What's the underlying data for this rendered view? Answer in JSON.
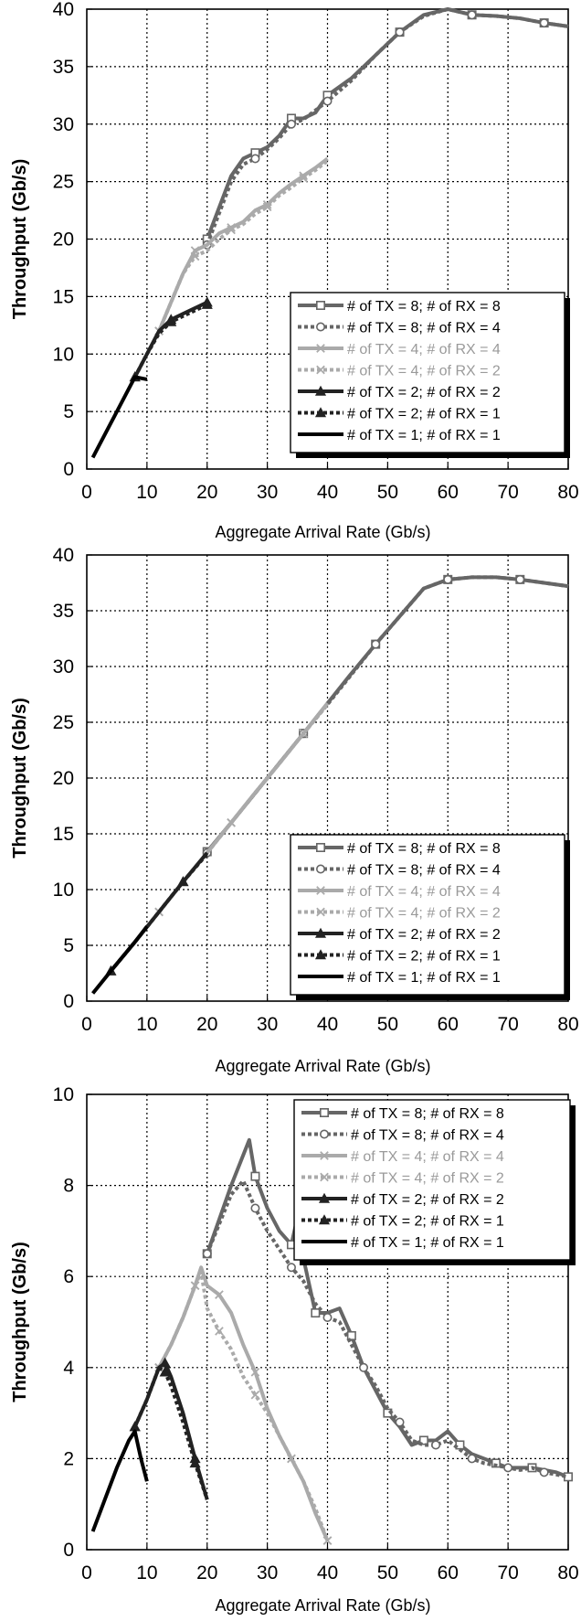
{
  "chart_data": [
    {
      "type": "line",
      "xlabel": "Aggregate Arrival Rate (Gb/s)",
      "ylabel": "Throughput (Gb/s)",
      "xlim": [
        0,
        80
      ],
      "ylim": [
        0,
        40
      ],
      "xticks": [
        0,
        10,
        20,
        30,
        40,
        50,
        60,
        70,
        80
      ],
      "yticks": [
        0,
        5,
        10,
        15,
        20,
        25,
        30,
        35,
        40
      ],
      "grid": true,
      "legend_position": "lower-right",
      "series": [
        {
          "name": "# of TX = 8; # of RX = 8",
          "color": "#666666",
          "dash": "solid",
          "marker": "square",
          "width": 4,
          "x": [
            20,
            24,
            26,
            28,
            30,
            32,
            34,
            36,
            38,
            40,
            44,
            48,
            52,
            56,
            60,
            64,
            68,
            72,
            76,
            80
          ],
          "y": [
            20,
            25.5,
            27,
            27.5,
            28,
            29,
            30.5,
            30.5,
            31,
            32.5,
            34,
            36,
            38,
            39.5,
            40,
            39.5,
            39.4,
            39.2,
            38.8,
            38.5
          ]
        },
        {
          "name": "# of TX = 8; # of RX = 4",
          "color": "#666666",
          "dash": "dotted",
          "marker": "circle",
          "width": 4,
          "x": [
            20,
            24,
            26,
            28,
            30,
            32,
            34,
            36,
            38,
            40,
            44,
            48,
            52,
            56,
            60,
            64,
            68,
            72,
            76,
            80
          ],
          "y": [
            19.5,
            25,
            26.5,
            27,
            27.8,
            28.8,
            30,
            30.4,
            31.2,
            32,
            33.8,
            36,
            38,
            39.4,
            40,
            39.5,
            39.4,
            39.2,
            38.8,
            38.5
          ]
        },
        {
          "name": "# of TX = 4; # of RX = 4",
          "color": "#aaaaaa",
          "dash": "solid",
          "marker": "x",
          "width": 4,
          "x": [
            12,
            14,
            16,
            18,
            20,
            22,
            24,
            26,
            28,
            30,
            32,
            34,
            36,
            38,
            40
          ],
          "y": [
            12,
            14.5,
            17,
            19,
            19.5,
            20.5,
            21,
            21.5,
            22.5,
            23,
            24,
            24.8,
            25.5,
            26.2,
            27
          ]
        },
        {
          "name": "# of TX = 4; # of RX = 2",
          "color": "#aaaaaa",
          "dash": "dotted",
          "marker": "x",
          "width": 4,
          "x": [
            12,
            14,
            16,
            18,
            20,
            22,
            24,
            26,
            28,
            30,
            32,
            34,
            36,
            38,
            40
          ],
          "y": [
            12,
            14.5,
            17,
            18.5,
            19,
            20,
            20.8,
            21.3,
            22.2,
            22.8,
            23.8,
            24.5,
            25.3,
            26,
            26.8
          ]
        },
        {
          "name": "# of TX = 2; # of RX = 2",
          "color": "#222222",
          "dash": "solid",
          "marker": "triangle",
          "width": 4,
          "x": [
            8,
            10,
            12,
            14,
            16,
            18,
            20
          ],
          "y": [
            8,
            10,
            12,
            13,
            13.5,
            14,
            14.5
          ]
        },
        {
          "name": "# of TX = 2; # of RX = 1",
          "color": "#222222",
          "dash": "dotted",
          "marker": "triangle",
          "width": 4,
          "x": [
            8,
            10,
            12,
            14,
            16,
            18,
            20
          ],
          "y": [
            8,
            10,
            11.8,
            12.8,
            13.3,
            13.8,
            14.3
          ]
        },
        {
          "name": "# of TX = 1; # of RX = 1",
          "color": "#000000",
          "dash": "solid",
          "marker": "none",
          "width": 4,
          "x": [
            1,
            2,
            4,
            6,
            8,
            10
          ],
          "y": [
            1,
            2,
            4,
            6,
            8,
            7.8
          ]
        }
      ]
    },
    {
      "type": "line",
      "xlabel": "Aggregate Arrival Rate (Gb/s)",
      "ylabel": "Throughput (Gb/s)",
      "xlim": [
        0,
        80
      ],
      "ylim": [
        0,
        40
      ],
      "xticks": [
        0,
        10,
        20,
        30,
        40,
        50,
        60,
        70,
        80
      ],
      "yticks": [
        0,
        5,
        10,
        15,
        20,
        25,
        30,
        35,
        40
      ],
      "grid": true,
      "legend_position": "lower-right",
      "series": [
        {
          "name": "# of TX = 8; # of RX = 8",
          "color": "#666666",
          "dash": "solid",
          "marker": "square",
          "width": 4,
          "x": [
            20,
            24,
            30,
            36,
            40,
            44,
            48,
            52,
            56,
            60,
            64,
            68,
            72,
            76,
            80
          ],
          "y": [
            13.4,
            16,
            20,
            24,
            26.7,
            29.4,
            32,
            34.5,
            37,
            37.8,
            38,
            38,
            37.8,
            37.5,
            37.2
          ]
        },
        {
          "name": "# of TX = 8; # of RX = 4",
          "color": "#666666",
          "dash": "dotted",
          "marker": "circle",
          "width": 4,
          "x": [
            20,
            24,
            30,
            36,
            40,
            44,
            48,
            52,
            56,
            60,
            64,
            68,
            72,
            76,
            80
          ],
          "y": [
            13.3,
            16,
            20,
            24,
            26.6,
            29.3,
            32,
            34.5,
            37,
            37.8,
            38,
            38,
            37.8,
            37.5,
            37.2
          ]
        },
        {
          "name": "# of TX = 4; # of RX = 4",
          "color": "#aaaaaa",
          "dash": "solid",
          "marker": "x",
          "width": 4,
          "x": [
            12,
            16,
            20,
            24,
            28,
            32,
            36,
            40
          ],
          "y": [
            8,
            10.7,
            13.3,
            16,
            18.7,
            21.3,
            24,
            26.7
          ]
        },
        {
          "name": "# of TX = 4; # of RX = 2",
          "color": "#aaaaaa",
          "dash": "dotted",
          "marker": "x",
          "width": 4,
          "x": [
            12,
            16,
            20,
            24,
            28,
            32,
            36,
            40
          ],
          "y": [
            8,
            10.7,
            13.3,
            16,
            18.7,
            21.3,
            24,
            26.6
          ]
        },
        {
          "name": "# of TX = 2; # of RX = 2",
          "color": "#222222",
          "dash": "solid",
          "marker": "triangle",
          "width": 4,
          "x": [
            4,
            8,
            12,
            16,
            20
          ],
          "y": [
            2.7,
            5.3,
            8,
            10.7,
            13.3
          ]
        },
        {
          "name": "# of TX = 2; # of RX = 1",
          "color": "#222222",
          "dash": "dotted",
          "marker": "triangle",
          "width": 4,
          "x": [
            4,
            8,
            12,
            16,
            20
          ],
          "y": [
            2.7,
            5.3,
            8,
            10.7,
            13.2
          ]
        },
        {
          "name": "# of TX = 1; # of RX = 1",
          "color": "#000000",
          "dash": "solid",
          "marker": "none",
          "width": 4,
          "x": [
            1,
            4,
            8,
            10
          ],
          "y": [
            0.7,
            2.7,
            5.3,
            6.7
          ]
        }
      ]
    },
    {
      "type": "line",
      "xlabel": "Aggregate Arrival Rate (Gb/s)",
      "ylabel": "Throughput (Gb/s)",
      "xlim": [
        0,
        80
      ],
      "ylim": [
        0,
        10
      ],
      "xticks": [
        0,
        10,
        20,
        30,
        40,
        50,
        60,
        70,
        80
      ],
      "yticks": [
        0,
        2,
        4,
        6,
        8,
        10
      ],
      "grid": true,
      "legend_position": "top-right",
      "series": [
        {
          "name": "# of TX = 8; # of RX = 8",
          "color": "#666666",
          "dash": "solid",
          "marker": "square",
          "width": 4,
          "x": [
            20,
            24,
            27,
            28,
            30,
            32,
            34,
            35,
            36,
            38,
            40,
            42,
            44,
            46,
            48,
            50,
            52,
            54,
            56,
            58,
            60,
            62,
            64,
            66,
            68,
            70,
            72,
            74,
            76,
            78,
            80
          ],
          "y": [
            6.5,
            8,
            9,
            8.2,
            7.5,
            7,
            6.7,
            7.3,
            6.4,
            5.2,
            5.2,
            5.3,
            4.7,
            4,
            3.5,
            3,
            2.7,
            2.3,
            2.4,
            2.4,
            2.6,
            2.3,
            2.1,
            2,
            1.9,
            1.8,
            1.8,
            1.8,
            1.75,
            1.7,
            1.6
          ]
        },
        {
          "name": "# of TX = 8; # of RX = 4",
          "color": "#666666",
          "dash": "dotted",
          "marker": "circle",
          "width": 4,
          "x": [
            20,
            24,
            26,
            28,
            30,
            32,
            34,
            36,
            38,
            40,
            42,
            44,
            46,
            48,
            50,
            52,
            54,
            56,
            58,
            60,
            62,
            64,
            66,
            68,
            70,
            72,
            74,
            76,
            78,
            80
          ],
          "y": [
            6.5,
            7.8,
            8.1,
            7.5,
            7,
            6.6,
            6.2,
            5.9,
            5.4,
            5.1,
            5,
            4.5,
            4,
            3.6,
            3.1,
            2.8,
            2.4,
            2.3,
            2.3,
            2.4,
            2.2,
            2,
            1.9,
            1.85,
            1.8,
            1.75,
            1.8,
            1.7,
            1.65,
            1.6
          ]
        },
        {
          "name": "# of TX = 4; # of RX = 4",
          "color": "#aaaaaa",
          "dash": "solid",
          "marker": "x",
          "width": 4,
          "x": [
            12,
            14,
            16,
            18,
            19,
            20,
            22,
            24,
            26,
            28,
            30,
            32,
            34,
            36,
            38,
            40
          ],
          "y": [
            4,
            4.5,
            5.1,
            5.8,
            6.2,
            5.8,
            5.6,
            5.2,
            4.5,
            3.9,
            3.1,
            2.5,
            2,
            1.5,
            0.8,
            0.2
          ]
        },
        {
          "name": "# of TX = 4; # of RX = 2",
          "color": "#aaaaaa",
          "dash": "dotted",
          "marker": "x",
          "width": 4,
          "x": [
            12,
            14,
            16,
            18,
            19,
            20,
            22,
            24,
            26,
            28,
            30,
            32,
            34,
            36,
            38,
            40
          ],
          "y": [
            4,
            4.5,
            5.1,
            5.8,
            6.1,
            5.3,
            4.8,
            4.4,
            3.8,
            3.4,
            3,
            2.5,
            2,
            1.5,
            0.9,
            0.2
          ]
        },
        {
          "name": "# of TX = 2; # of RX = 2",
          "color": "#222222",
          "dash": "solid",
          "marker": "triangle",
          "width": 4,
          "x": [
            8,
            10,
            12,
            13,
            14,
            16,
            18,
            20
          ],
          "y": [
            2.7,
            3.3,
            4,
            4.1,
            3.8,
            3,
            2,
            1.1
          ]
        },
        {
          "name": "# of TX = 2; # of RX = 1",
          "color": "#222222",
          "dash": "dotted",
          "marker": "triangle",
          "width": 4,
          "x": [
            8,
            10,
            12,
            13,
            14,
            16,
            18,
            20
          ],
          "y": [
            2.7,
            3.3,
            4,
            3.9,
            3.6,
            2.8,
            1.9,
            1.1
          ]
        },
        {
          "name": "# of TX = 1; # of RX = 1",
          "color": "#000000",
          "dash": "solid",
          "marker": "none",
          "width": 4,
          "x": [
            1,
            3,
            5,
            7,
            8,
            9,
            10
          ],
          "y": [
            0.4,
            1.1,
            1.8,
            2.4,
            2.6,
            2.0,
            1.5
          ]
        }
      ]
    }
  ]
}
